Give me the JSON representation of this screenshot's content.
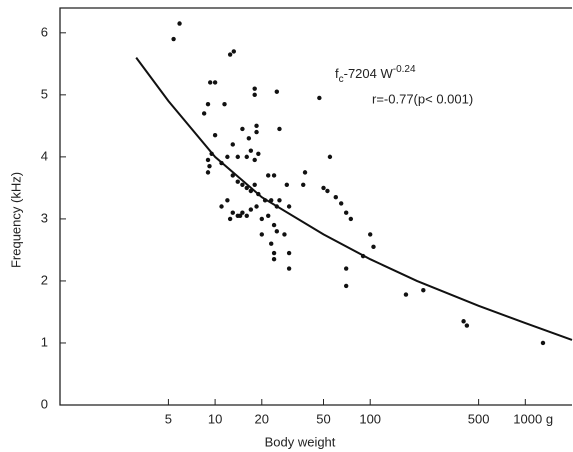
{
  "chart_data": {
    "type": "scatter",
    "xlabel": "Body weight",
    "ylabel": "Frequency (kHz)",
    "xscale": "log",
    "xlim": [
      1,
      2000
    ],
    "ylim": [
      0,
      6.4
    ],
    "xticks": [
      5,
      10,
      20,
      50,
      100,
      500,
      {
        "value": 1000,
        "label": "1000 g"
      }
    ],
    "yticks": [
      0,
      1,
      2,
      3,
      4,
      5,
      6
    ],
    "annotations": [
      {
        "f": "f",
        "sub": "c",
        "rest": "-7204 W",
        "sup": "-0.24"
      },
      "r=-0.77(p< 0.001)"
    ],
    "series": [
      {
        "type": "scatter",
        "color": "#111",
        "x": [
          5.4,
          5.9,
          12.5,
          13.2,
          9.3,
          10,
          18,
          18,
          25,
          47,
          9,
          11.5,
          8.5,
          10,
          15,
          16.5,
          18.5,
          18.5,
          26,
          13,
          9.5,
          9,
          9.2,
          9,
          11,
          12,
          14,
          16,
          17,
          18,
          19,
          22,
          24,
          29,
          37,
          38,
          13,
          14,
          15,
          16,
          17,
          18,
          19,
          21,
          23,
          25,
          26,
          30,
          12,
          13,
          14,
          15,
          16,
          17,
          11,
          12.5,
          14.5,
          18.5,
          20,
          22,
          24,
          25,
          20,
          23,
          28,
          24,
          30,
          24,
          30,
          55,
          50,
          53,
          60,
          65,
          70,
          75,
          100,
          105,
          90,
          70,
          70,
          170,
          220,
          400,
          420,
          1300
        ],
        "values": [
          5.9,
          6.15,
          5.65,
          5.7,
          5.2,
          5.2,
          5.1,
          5.0,
          5.05,
          4.95,
          4.85,
          4.85,
          4.7,
          4.35,
          4.45,
          4.3,
          4.5,
          4.4,
          4.45,
          4.2,
          4.05,
          3.95,
          3.85,
          3.75,
          3.9,
          4.0,
          4.0,
          4.0,
          4.1,
          3.95,
          4.05,
          3.7,
          3.7,
          3.55,
          3.55,
          3.75,
          3.7,
          3.6,
          3.55,
          3.5,
          3.45,
          3.55,
          3.4,
          3.3,
          3.3,
          3.2,
          3.3,
          3.2,
          3.3,
          3.1,
          3.05,
          3.1,
          3.05,
          3.15,
          3.2,
          3.0,
          3.05,
          3.2,
          3.0,
          3.05,
          2.9,
          2.8,
          2.75,
          2.6,
          2.75,
          2.45,
          2.45,
          2.35,
          2.2,
          4.0,
          3.5,
          3.45,
          3.35,
          3.25,
          3.1,
          3.0,
          2.75,
          2.55,
          2.4,
          2.2,
          1.92,
          1.78,
          1.85,
          1.35,
          1.28,
          1.0
        ]
      },
      {
        "type": "line",
        "color": "#111",
        "x": [
          3.1,
          5,
          10,
          20,
          50,
          100,
          200,
          500,
          1000,
          2000
        ],
        "values": [
          5.6,
          4.9,
          4.0,
          3.35,
          2.75,
          2.35,
          2.0,
          1.6,
          1.32,
          1.05
        ]
      }
    ]
  }
}
